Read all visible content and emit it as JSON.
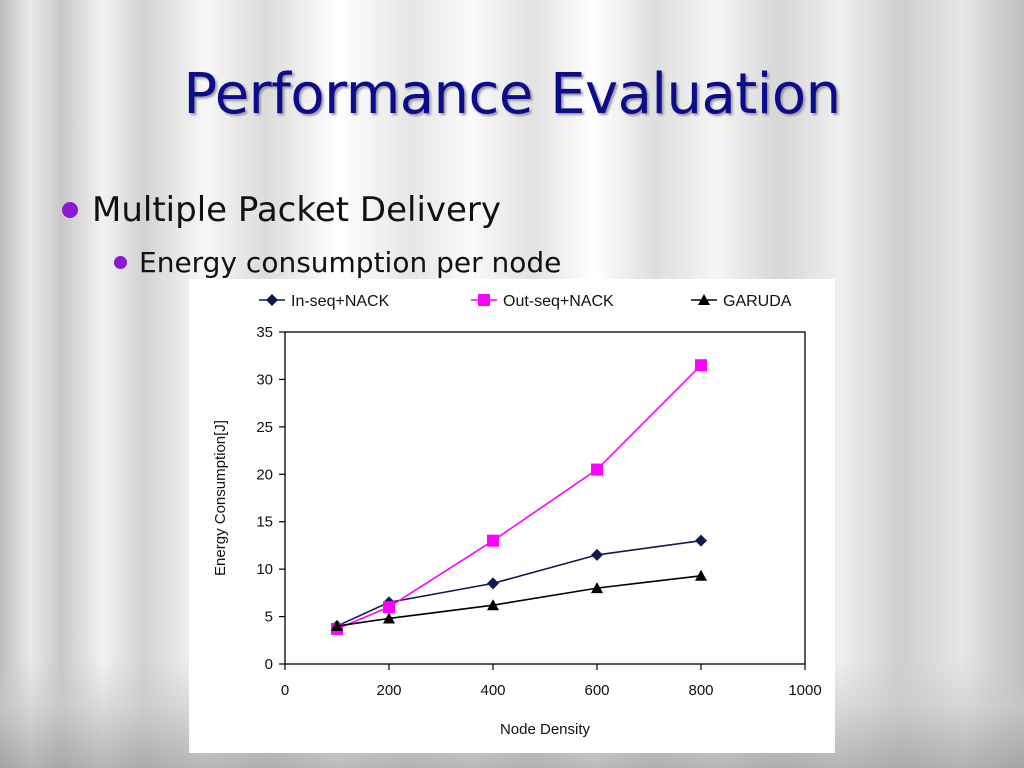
{
  "slide": {
    "title": "Performance Evaluation",
    "bullets": [
      {
        "text": "Multiple Packet Delivery"
      },
      {
        "text": "Energy consumption per node"
      }
    ],
    "bullet_color": "#8a1ad6",
    "title_color": "#0d0d8c"
  },
  "chart_data": {
    "type": "line",
    "title": "",
    "xlabel": "Node Density",
    "ylabel": "Energy Consumption[J]",
    "xlim": [
      0,
      1000
    ],
    "ylim": [
      0,
      35
    ],
    "xticks": [
      "0",
      "200",
      "400",
      "600",
      "800",
      "1000"
    ],
    "yticks": [
      "0",
      "5",
      "10",
      "15",
      "20",
      "25",
      "30",
      "35"
    ],
    "grid": false,
    "legend_position": "top",
    "x": [
      100,
      200,
      400,
      600,
      800
    ],
    "series": [
      {
        "name": "In-seq+NACK",
        "values": [
          4,
          6.5,
          8.5,
          11.5,
          13
        ],
        "color": "#0f1a4d",
        "marker": "diamond"
      },
      {
        "name": "Out-seq+NACK",
        "values": [
          3.7,
          6,
          13,
          20.5,
          31.5
        ],
        "color": "#ff00ff",
        "marker": "square"
      },
      {
        "name": "GARUDA",
        "values": [
          4,
          4.8,
          6.2,
          8,
          9.3
        ],
        "color": "#000000",
        "marker": "triangle"
      }
    ]
  }
}
